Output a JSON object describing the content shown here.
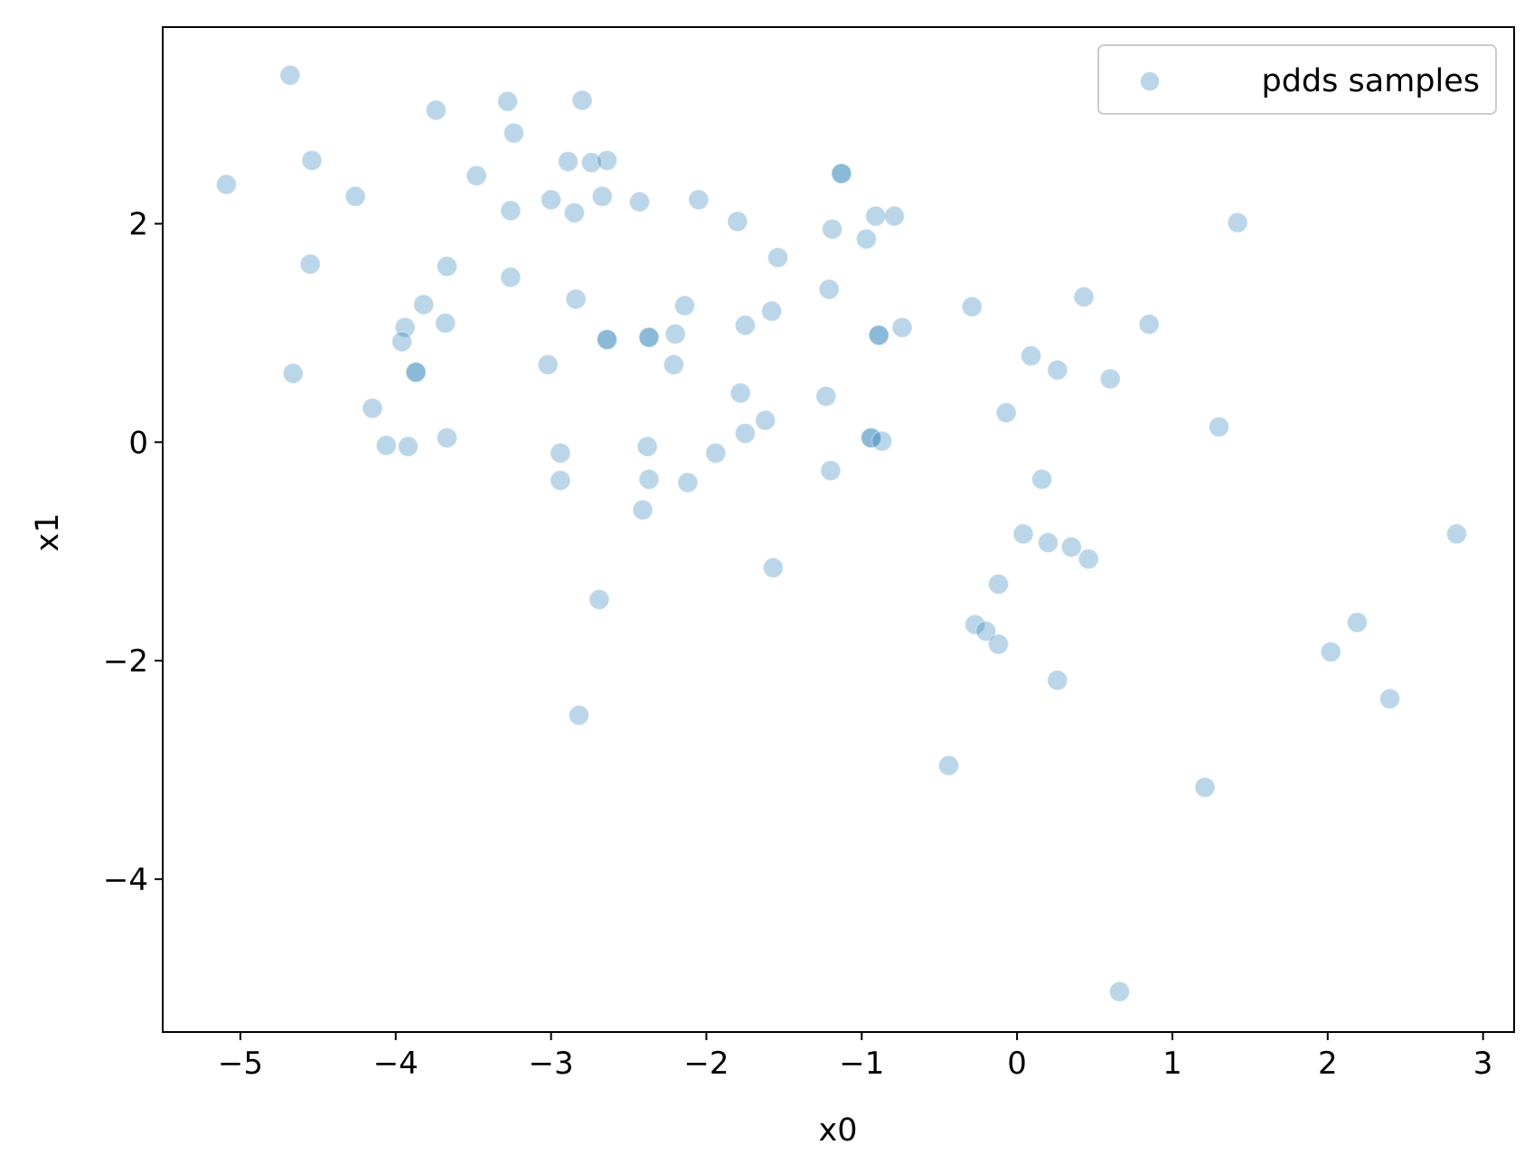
{
  "chart_data": {
    "type": "scatter",
    "title": "",
    "xlabel": "x0",
    "ylabel": "x1",
    "xlim": [
      -5.5,
      3.2
    ],
    "ylim": [
      -5.4,
      3.8
    ],
    "xticks": [
      -5,
      -4,
      -3,
      -2,
      -1,
      0,
      1,
      2,
      3
    ],
    "yticks": [
      -4,
      -2,
      0,
      2
    ],
    "xtick_labels": [
      "−5",
      "−4",
      "−3",
      "−2",
      "−1",
      "0",
      "1",
      "2",
      "3"
    ],
    "ytick_labels": [
      "−4",
      "−2",
      "0",
      "2"
    ],
    "grid": false,
    "legend_position": "top-right",
    "series": [
      {
        "name": "pdds samples",
        "color": "#1f77b4",
        "alpha": 0.3,
        "points": [
          [
            -4.68,
            3.36
          ],
          [
            -5.09,
            2.36
          ],
          [
            -4.54,
            2.58
          ],
          [
            -4.26,
            2.25
          ],
          [
            -4.55,
            1.63
          ],
          [
            -4.66,
            0.63
          ],
          [
            -3.74,
            3.04
          ],
          [
            -3.48,
            2.44
          ],
          [
            -3.67,
            1.61
          ],
          [
            -3.82,
            1.26
          ],
          [
            -3.68,
            1.09
          ],
          [
            -3.94,
            1.05
          ],
          [
            -3.96,
            0.92
          ],
          [
            -3.87,
            0.64
          ],
          [
            -3.87,
            0.64
          ],
          [
            -4.15,
            0.31
          ],
          [
            -4.06,
            -0.03
          ],
          [
            -3.92,
            -0.04
          ],
          [
            -3.67,
            0.04
          ],
          [
            -3.28,
            3.12
          ],
          [
            -3.24,
            2.83
          ],
          [
            -3.26,
            2.12
          ],
          [
            -3.26,
            1.51
          ],
          [
            -2.8,
            3.13
          ],
          [
            -2.89,
            2.57
          ],
          [
            -2.74,
            2.56
          ],
          [
            -2.64,
            2.58
          ],
          [
            -3.0,
            2.22
          ],
          [
            -2.85,
            2.1
          ],
          [
            -2.67,
            2.25
          ],
          [
            -2.43,
            2.2
          ],
          [
            -2.84,
            1.31
          ],
          [
            -2.64,
            0.94
          ],
          [
            -2.64,
            0.94
          ],
          [
            -2.37,
            0.96
          ],
          [
            -2.37,
            0.96
          ],
          [
            -3.02,
            0.71
          ],
          [
            -2.94,
            -0.1
          ],
          [
            -2.94,
            -0.35
          ],
          [
            -2.38,
            -0.04
          ],
          [
            -2.37,
            -0.34
          ],
          [
            -2.41,
            -0.62
          ],
          [
            -2.69,
            -1.44
          ],
          [
            -2.82,
            -2.5
          ],
          [
            -2.05,
            2.22
          ],
          [
            -1.8,
            2.02
          ],
          [
            -1.54,
            1.69
          ],
          [
            -2.14,
            1.25
          ],
          [
            -2.2,
            0.99
          ],
          [
            -1.75,
            1.07
          ],
          [
            -1.58,
            1.2
          ],
          [
            -2.21,
            0.71
          ],
          [
            -1.78,
            0.45
          ],
          [
            -1.62,
            0.2
          ],
          [
            -1.75,
            0.08
          ],
          [
            -1.94,
            -0.1
          ],
          [
            -2.12,
            -0.37
          ],
          [
            -1.57,
            -1.15
          ],
          [
            -1.13,
            2.46
          ],
          [
            -1.13,
            2.46
          ],
          [
            -1.19,
            1.95
          ],
          [
            -0.91,
            2.07
          ],
          [
            -0.79,
            2.07
          ],
          [
            -0.97,
            1.86
          ],
          [
            -1.21,
            1.4
          ],
          [
            -0.89,
            0.98
          ],
          [
            -0.89,
            0.98
          ],
          [
            -0.74,
            1.05
          ],
          [
            -1.23,
            0.42
          ],
          [
            -0.94,
            0.04
          ],
          [
            -0.94,
            0.04
          ],
          [
            -0.87,
            0.01
          ],
          [
            -1.2,
            -0.26
          ],
          [
            -0.29,
            1.24
          ],
          [
            0.09,
            0.79
          ],
          [
            0.26,
            0.66
          ],
          [
            -0.07,
            0.27
          ],
          [
            0.43,
            1.33
          ],
          [
            0.6,
            0.58
          ],
          [
            0.85,
            1.08
          ],
          [
            1.3,
            0.14
          ],
          [
            1.42,
            2.01
          ],
          [
            0.16,
            -0.34
          ],
          [
            0.04,
            -0.84
          ],
          [
            0.2,
            -0.92
          ],
          [
            0.35,
            -0.96
          ],
          [
            0.46,
            -1.07
          ],
          [
            -0.12,
            -1.3
          ],
          [
            -0.27,
            -1.67
          ],
          [
            -0.2,
            -1.73
          ],
          [
            -0.12,
            -1.85
          ],
          [
            0.26,
            -2.18
          ],
          [
            -0.44,
            -2.96
          ],
          [
            1.21,
            -3.16
          ],
          [
            0.66,
            -5.03
          ],
          [
            2.02,
            -1.92
          ],
          [
            2.19,
            -1.65
          ],
          [
            2.4,
            -2.35
          ],
          [
            2.83,
            -0.84
          ]
        ]
      }
    ]
  }
}
